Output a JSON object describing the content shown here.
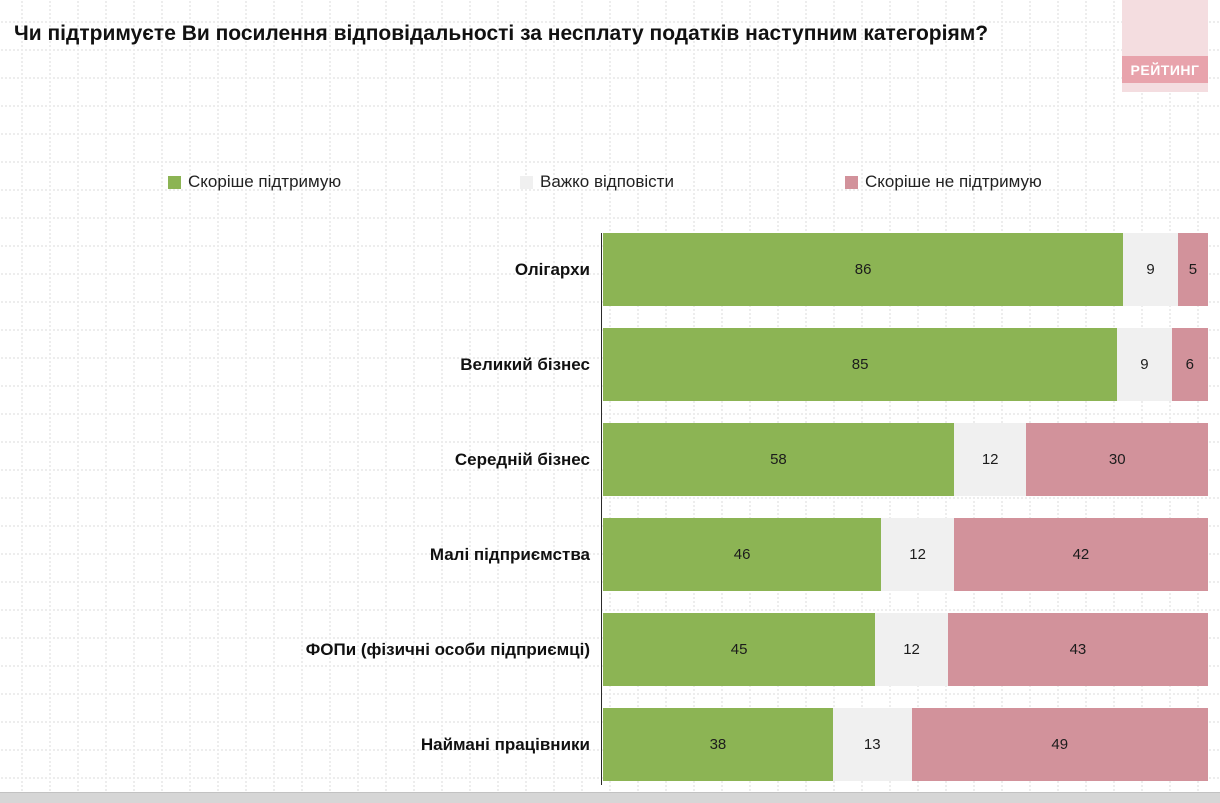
{
  "title": "Чи підтримуєте Ви посилення відповідальності за несплату податків наступним категоріям?",
  "logo": {
    "text": "РЕЙТИНГ"
  },
  "colors": {
    "support": "#8cb454",
    "neutral": "#f0f0f0",
    "oppose": "#d2929b",
    "logo_light": "#f4dde0",
    "logo_band": "#e8a3ac"
  },
  "chart_data": {
    "type": "bar",
    "orientation": "horizontal",
    "stacked": true,
    "xlim": [
      0,
      100
    ],
    "legend_position": "top",
    "grid": "dotted",
    "categories": [
      "Олігархи",
      "Великий бізнес",
      "Середній бізнес",
      "Малі підприємства",
      "ФОПи (фізичні особи підприємці)",
      "Наймані працівники"
    ],
    "series": [
      {
        "name": "Скоріше підтримую",
        "color": "#8cb454",
        "values": [
          86,
          85,
          58,
          46,
          45,
          38
        ]
      },
      {
        "name": "Важко відповісти",
        "color": "#f0f0f0",
        "values": [
          9,
          9,
          12,
          12,
          12,
          13
        ]
      },
      {
        "name": "Скоріше не підтримую",
        "color": "#d2929b",
        "values": [
          5,
          6,
          30,
          42,
          43,
          49
        ]
      }
    ]
  }
}
